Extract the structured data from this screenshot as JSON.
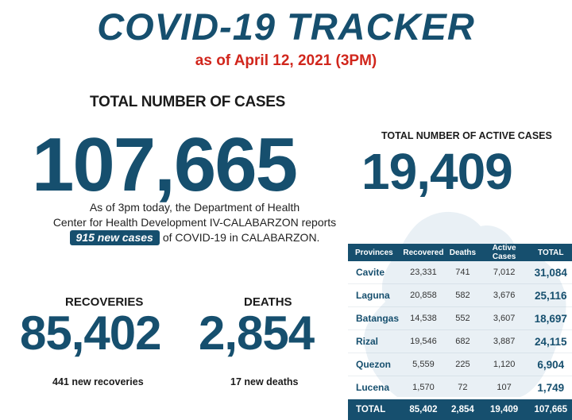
{
  "header": {
    "title": "COVID-19 TRACKER",
    "as_of": "as of April 12, 2021 (3PM)"
  },
  "total_cases": {
    "label": "TOTAL NUMBER OF CASES",
    "value": "107,665"
  },
  "active_cases": {
    "label": "TOTAL NUMBER OF ACTIVE CASES",
    "value": "19,409"
  },
  "report": {
    "line1": "As of 3pm today, the Department of Health",
    "line2": "Center for Health Development IV-CALABARZON reports",
    "new_cases": "915 new cases",
    "line3_rest": "of COVID-19 in CALABARZON."
  },
  "recoveries": {
    "label": "RECOVERIES",
    "value": "85,402",
    "sub": "441 new recoveries"
  },
  "deaths": {
    "label": "DEATHS",
    "value": "2,854",
    "sub": "17 new deaths"
  },
  "provinces_table": {
    "headers": [
      "Provinces",
      "Recovered",
      "Deaths",
      "Active Cases",
      "TOTAL"
    ],
    "rows": [
      [
        "Cavite",
        "23,331",
        "741",
        "7,012",
        "31,084"
      ],
      [
        "Laguna",
        "20,858",
        "582",
        "3,676",
        "25,116"
      ],
      [
        "Batangas",
        "14,538",
        "552",
        "3,607",
        "18,697"
      ],
      [
        "Rizal",
        "19,546",
        "682",
        "3,887",
        "24,115"
      ],
      [
        "Quezon",
        "5,559",
        "225",
        "1,120",
        "6,904"
      ],
      [
        "Lucena",
        "1,570",
        "72",
        "107",
        "1,749"
      ]
    ],
    "total": [
      "TOTAL",
      "85,402",
      "2,854",
      "19,409",
      "107,665"
    ]
  },
  "colors": {
    "brand_blue": "#164f6e",
    "date_red": "#d1261c",
    "map_tint": "#dbe6ee"
  }
}
